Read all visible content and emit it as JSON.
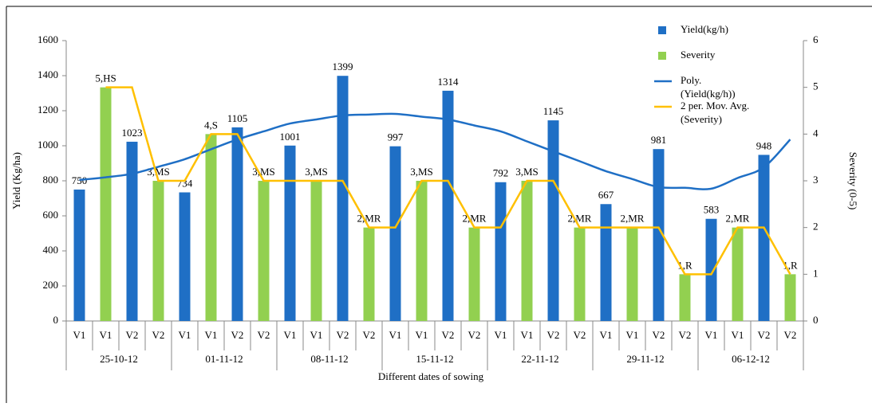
{
  "chart_data": {
    "type": "bar",
    "categories": [
      "V1",
      "V1",
      "V2",
      "V2",
      "V1",
      "V1",
      "V2",
      "V2",
      "V1",
      "V1",
      "V2",
      "V2",
      "V1",
      "V1",
      "V2",
      "V2",
      "V1",
      "V1",
      "V2",
      "V2",
      "V1",
      "V1",
      "V2",
      "V2",
      "V1",
      "V1",
      "V2",
      "V2"
    ],
    "groups": [
      "25-10-12",
      "01-11-12",
      "08-11-12",
      "15-11-12",
      "22-11-12",
      "29-11-12",
      "06-12-12"
    ],
    "x_label": "Different dates of sowing",
    "y_label": "Yield (Kg/ha)",
    "y2_label": "Severity (0-5)",
    "ylim": [
      0,
      1600
    ],
    "yticks": [
      0,
      200,
      400,
      600,
      800,
      1000,
      1200,
      1400,
      1600
    ],
    "y2lim": [
      0,
      6
    ],
    "y2ticks": [
      0,
      1,
      2,
      3,
      4,
      5,
      6
    ],
    "legend": "top-right",
    "series": [
      {
        "name": "Yield(kg/h)",
        "type": "bar",
        "color": "#1f6fc5",
        "values": [
          750,
          null,
          1023,
          null,
          734,
          null,
          1105,
          null,
          1001,
          null,
          1399,
          null,
          997,
          null,
          1314,
          null,
          792,
          null,
          1145,
          null,
          667,
          null,
          981,
          null,
          583,
          null,
          948,
          null
        ]
      },
      {
        "name": "Severity",
        "type": "bar",
        "axis": "y2",
        "color": "#92d050",
        "values": [
          null,
          5,
          null,
          3,
          null,
          4,
          null,
          3,
          null,
          3,
          null,
          2,
          null,
          3,
          null,
          2,
          null,
          3,
          null,
          2,
          null,
          2,
          null,
          1,
          null,
          2,
          null,
          1
        ],
        "value_labels": [
          null,
          "5,HS",
          null,
          "3,MS",
          null,
          "4,S",
          null,
          "3,MS",
          null,
          "3,MS",
          null,
          "2,MR",
          null,
          "3,MS",
          null,
          "2,MR",
          null,
          "3,MS",
          null,
          "2,MR",
          null,
          "2,MR",
          null,
          "1,R",
          null,
          "2,MR",
          null,
          "1,R"
        ]
      },
      {
        "name": "Poly. (Yield(kg/h))",
        "type": "line",
        "color": "#1f6fc5",
        "values": [
          805,
          820,
          840,
          880,
          923,
          980,
          1036,
          1082,
          1127,
          1150,
          1173,
          1178,
          1182,
          1166,
          1150,
          1116,
          1082,
          1025,
          968,
          912,
          855,
          810,
          764,
          760,
          755,
          816,
          877,
          1036
        ]
      },
      {
        "name": "2 per. Mov. Avg. (Severity)",
        "type": "line",
        "axis": "y2",
        "color": "#ffc000",
        "values": [
          null,
          5,
          5,
          3,
          3,
          4,
          4,
          3,
          3,
          3,
          3,
          2,
          2,
          3,
          3,
          2,
          2,
          3,
          3,
          2,
          2,
          2,
          2,
          1,
          1,
          2,
          2,
          1
        ]
      }
    ]
  }
}
